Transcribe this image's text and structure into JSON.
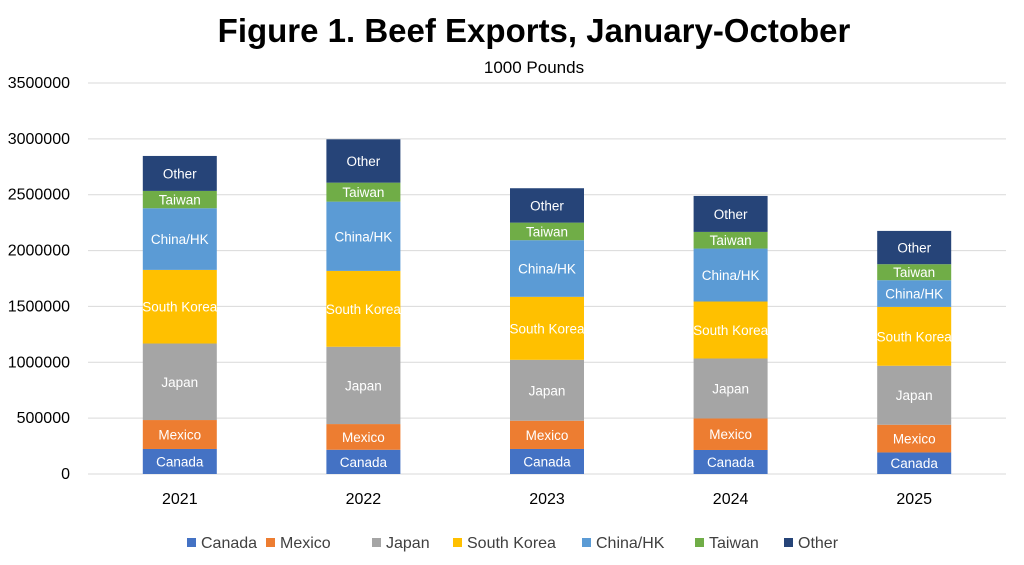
{
  "chart_data": {
    "type": "bar",
    "stacked": true,
    "title": "Figure 1. Beef Exports, January-October",
    "subtitle": "1000 Pounds",
    "xlabel": "",
    "ylabel": "",
    "ylim": [
      0,
      3500000
    ],
    "yticks": [
      "0",
      "500000",
      "1000000",
      "1500000",
      "2000000",
      "2500000",
      "3000000",
      "3500000"
    ],
    "grid": true,
    "legend_position": "bottom",
    "categories": [
      "2021",
      "2022",
      "2023",
      "2024",
      "2025"
    ],
    "series": [
      {
        "name": "Canada",
        "color": "#4472C4",
        "values": [
          224000,
          217000,
          224000,
          215000,
          193000
        ]
      },
      {
        "name": "Mexico",
        "color": "#ED7D31",
        "values": [
          259000,
          230000,
          253000,
          282000,
          248000
        ]
      },
      {
        "name": "Japan",
        "color": "#A5A5A5",
        "values": [
          685000,
          692000,
          545000,
          537000,
          528000
        ]
      },
      {
        "name": "South Korea",
        "color": "#FFC000",
        "values": [
          659000,
          679000,
          564000,
          510000,
          527000
        ]
      },
      {
        "name": "China/HK",
        "color": "#5B9BD5",
        "values": [
          552000,
          620000,
          507000,
          474000,
          239000
        ]
      },
      {
        "name": "Taiwan",
        "color": "#70AD47",
        "values": [
          155000,
          170000,
          157000,
          149000,
          143000
        ]
      },
      {
        "name": "Other",
        "color": "#264478",
        "values": [
          313000,
          388000,
          308000,
          322000,
          298000
        ]
      }
    ]
  }
}
